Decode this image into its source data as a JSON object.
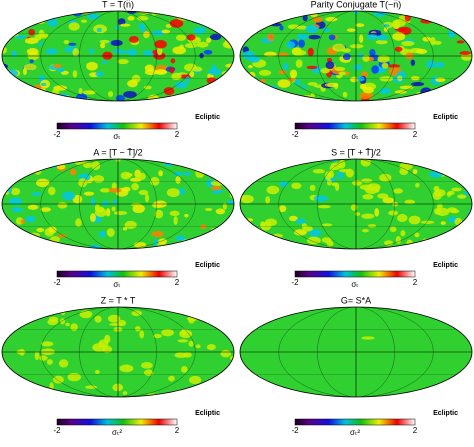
{
  "panels": [
    {
      "title": "T = T(n̂)",
      "min_label": "-2",
      "max_label": "2",
      "unit": "σₜ",
      "frame": "Ecliptic"
    },
    {
      "title": "Parity Conjugate T(−n̂)",
      "min_label": "-2",
      "max_label": "2",
      "unit": "σₜ",
      "frame": "Ecliptic"
    },
    {
      "title": "A = [T − T̄]/2",
      "min_label": "-2",
      "max_label": "2",
      "unit": "σₜ",
      "frame": "Ecliptic"
    },
    {
      "title": "S = [T + T̄]/2",
      "min_label": "-2",
      "max_label": "2",
      "unit": "σₜ",
      "frame": "Ecliptic"
    },
    {
      "title": "Z = T * T",
      "min_label": "-2",
      "max_label": "2",
      "unit": "σₜ²",
      "frame": "Ecliptic"
    },
    {
      "title": "G= S*A",
      "min_label": "-2",
      "max_label": "2",
      "unit": "σₜ²",
      "frame": "Ecliptic"
    }
  ]
}
